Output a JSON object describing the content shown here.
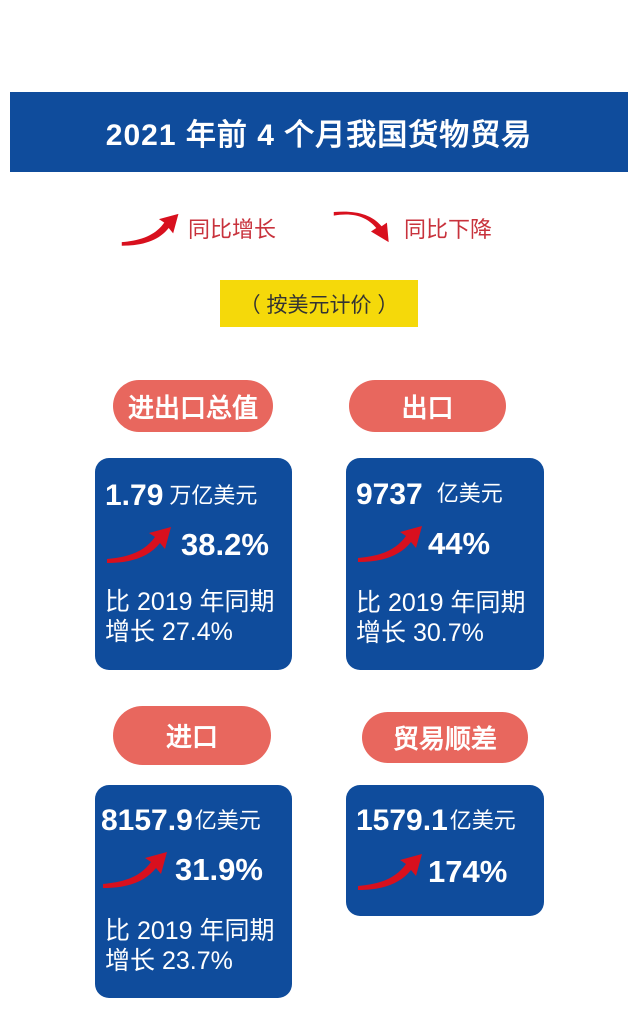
{
  "title": "2021 年前 4 个月我国货物贸易",
  "legend": {
    "up": "同比增长",
    "down": "同比下降"
  },
  "unit_note": "（ 按美元计价 ）",
  "colors": {
    "banner": "#0f4c9c",
    "pill": "#e8675e",
    "arrow": "#d8101e",
    "note": "#f5d90a"
  },
  "cards": [
    {
      "label": "进出口总值",
      "value": "1.79",
      "unit": "万亿美元",
      "change": "38.2%",
      "compare_1": "比 2019 年同期",
      "compare_2": "增长 27.4%"
    },
    {
      "label": "出口",
      "value": "9737",
      "unit": "亿美元",
      "change": "44%",
      "compare_1": "比 2019 年同期",
      "compare_2": "增长 30.7%"
    },
    {
      "label": "进口",
      "value": "8157.9",
      "unit": "亿美元",
      "change": "31.9%",
      "compare_1": "比 2019 年同期",
      "compare_2": "增长 23.7%"
    },
    {
      "label": "贸易顺差",
      "value": "1579.1",
      "unit": "亿美元",
      "change": "174%"
    }
  ]
}
